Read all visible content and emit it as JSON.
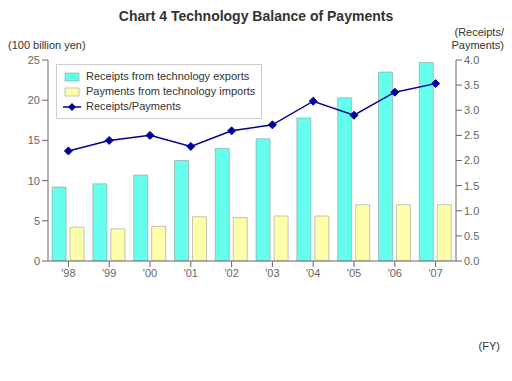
{
  "chart_data": {
    "type": "bar",
    "title": "Chart 4 Technology Balance of Payments",
    "ylabel": "(100 billion yen)",
    "y2label": "(Receipts/\nPayments)",
    "xlabel": "(FY)",
    "categories": [
      "'98",
      "'99",
      "'00",
      "'01",
      "'02",
      "'03",
      "'04",
      "'05",
      "'06",
      "'07"
    ],
    "series": [
      {
        "name": "Receipts from technology exports",
        "type": "bar",
        "color": "#66FFEE",
        "values": [
          9.2,
          9.6,
          10.7,
          12.5,
          14.0,
          15.2,
          17.8,
          20.3,
          23.5,
          24.7
        ]
      },
      {
        "name": "Payments from technology imports",
        "type": "bar",
        "color": "#FFFFAA",
        "values": [
          4.2,
          4.0,
          4.3,
          5.5,
          5.4,
          5.6,
          5.6,
          7.0,
          7.0,
          7.0
        ]
      },
      {
        "name": "Receipts/Payments",
        "type": "line",
        "axis": "y2",
        "color": "#000099",
        "marker": "diamond",
        "values": [
          2.19,
          2.4,
          2.5,
          2.28,
          2.59,
          2.71,
          3.18,
          2.9,
          3.36,
          3.53
        ]
      }
    ],
    "ylim": [
      0,
      25
    ],
    "yticks": [
      0,
      5,
      10,
      15,
      20,
      25
    ],
    "y2lim": [
      0.0,
      4.0
    ],
    "y2ticks": [
      {
        "value": 0,
        "label": "0.0"
      },
      0.5,
      {
        "value": 1,
        "label": "1.0"
      },
      1.5,
      {
        "value": 2,
        "label": "2.0"
      },
      2.5,
      {
        "value": 3,
        "label": "3.0"
      },
      3.5,
      {
        "value": 4,
        "label": "4.0"
      }
    ],
    "legend": "upper left",
    "grid": false
  }
}
